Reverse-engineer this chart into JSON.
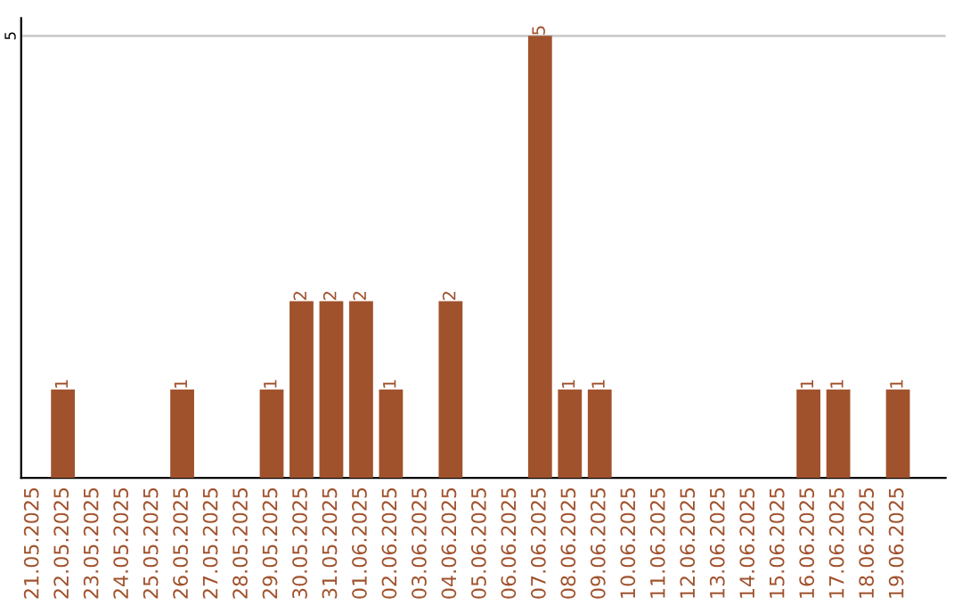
{
  "chart_data": {
    "type": "bar",
    "categories": [
      "21.05.2025",
      "22.05.2025",
      "23.05.2025",
      "24.05.2025",
      "25.05.2025",
      "26.05.2025",
      "27.05.2025",
      "28.05.2025",
      "29.05.2025",
      "30.05.2025",
      "31.05.2025",
      "01.06.2025",
      "02.06.2025",
      "03.06.2025",
      "04.06.2025",
      "05.06.2025",
      "06.06.2025",
      "07.06.2025",
      "08.06.2025",
      "09.06.2025",
      "10.06.2025",
      "11.06.2025",
      "12.06.2025",
      "13.06.2025",
      "14.06.2025",
      "15.06.2025",
      "16.06.2025",
      "17.06.2025",
      "18.06.2025",
      "19.06.2025"
    ],
    "values": [
      0,
      1,
      0,
      0,
      0,
      1,
      0,
      0,
      1,
      2,
      2,
      2,
      1,
      0,
      2,
      0,
      0,
      5,
      1,
      1,
      0,
      0,
      0,
      0,
      0,
      0,
      1,
      1,
      0,
      1
    ],
    "value_labels": [
      null,
      "1",
      null,
      null,
      null,
      "1",
      null,
      null,
      "1",
      "2",
      "2",
      "2",
      "1",
      null,
      "2",
      null,
      null,
      "5",
      "1",
      "1",
      null,
      null,
      null,
      null,
      null,
      null,
      "1",
      "1",
      null,
      "1"
    ],
    "color": "#a0522d",
    "ylim": [
      0,
      5.2
    ],
    "yticks": [
      5
    ],
    "grid": "y"
  }
}
